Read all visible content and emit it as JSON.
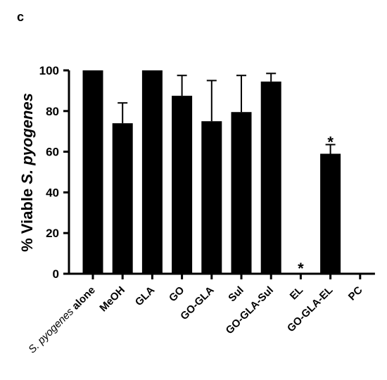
{
  "panel_label": "c",
  "chart_data": {
    "type": "bar",
    "title": "",
    "xlabel": "",
    "ylabel": {
      "prefix": "% Viable ",
      "species": "S. pyogenes"
    },
    "ylim": [
      0,
      100
    ],
    "yticks": [
      0,
      20,
      40,
      60,
      80,
      100
    ],
    "categories": [
      "S. pyogenes alone",
      "MeOH",
      "GLA",
      "GO",
      "GO-GLA",
      "Sul",
      "GO-GLA-Sul",
      "EL",
      "GO-GLA-EL",
      "PC"
    ],
    "category_label_parts": [
      [
        {
          "text": "S. pyogenes",
          "italic": true
        },
        {
          "text": " alone",
          "italic": false
        }
      ],
      [
        {
          "text": "MeOH",
          "italic": false
        }
      ],
      [
        {
          "text": "GLA",
          "italic": false
        }
      ],
      [
        {
          "text": "GO",
          "italic": false
        }
      ],
      [
        {
          "text": "GO-GLA",
          "italic": false
        }
      ],
      [
        {
          "text": "Sul",
          "italic": false
        }
      ],
      [
        {
          "text": "GO-GLA-Sul",
          "italic": false
        }
      ],
      [
        {
          "text": "EL",
          "italic": false
        }
      ],
      [
        {
          "text": "GO-GLA-EL",
          "italic": false
        }
      ],
      [
        {
          "text": "PC",
          "italic": false
        }
      ]
    ],
    "values": [
      100,
      74,
      100,
      87.5,
      75,
      79.5,
      94.5,
      0,
      59,
      0
    ],
    "error_upper": [
      0,
      10,
      0,
      10,
      20,
      18,
      4,
      0,
      4.5,
      0
    ],
    "significance": [
      "",
      "",
      "",
      "",
      "",
      "",
      "",
      "*",
      "*",
      ""
    ],
    "bar_color": "#000000"
  }
}
